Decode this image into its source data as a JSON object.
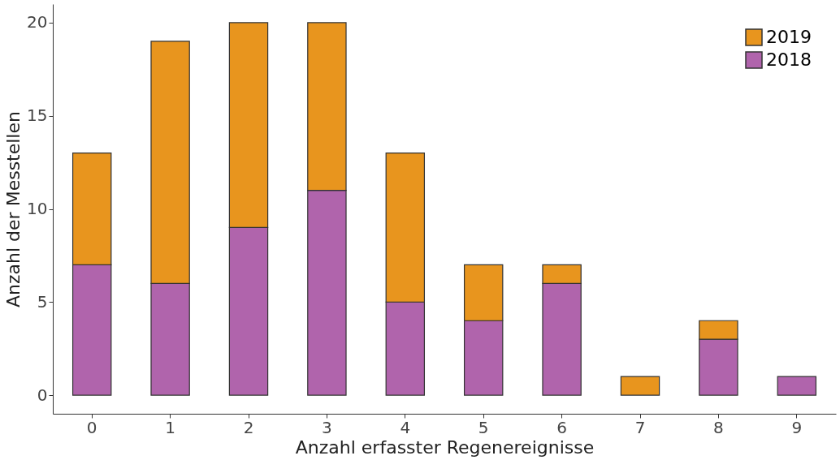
{
  "chart_data": {
    "type": "bar",
    "stacked": true,
    "xlabel": "Anzahl erfasster Regenereignisse",
    "ylabel": "Anzahl der Messtellen",
    "categories": [
      "0",
      "1",
      "2",
      "3",
      "4",
      "5",
      "6",
      "7",
      "8",
      "9"
    ],
    "series": [
      {
        "name": "2018",
        "color": "#b064ac",
        "values": [
          7,
          6,
          9,
          11,
          5,
          4,
          6,
          null,
          3,
          1
        ]
      },
      {
        "name": "2019",
        "color": "#e8951e",
        "values": [
          6,
          13,
          11,
          9,
          8,
          3,
          1,
          1,
          1,
          null
        ]
      }
    ],
    "ylim": [
      -1,
      21
    ],
    "yticks": [
      0,
      5,
      10,
      15,
      20
    ],
    "grid": false,
    "legend": "top right"
  }
}
